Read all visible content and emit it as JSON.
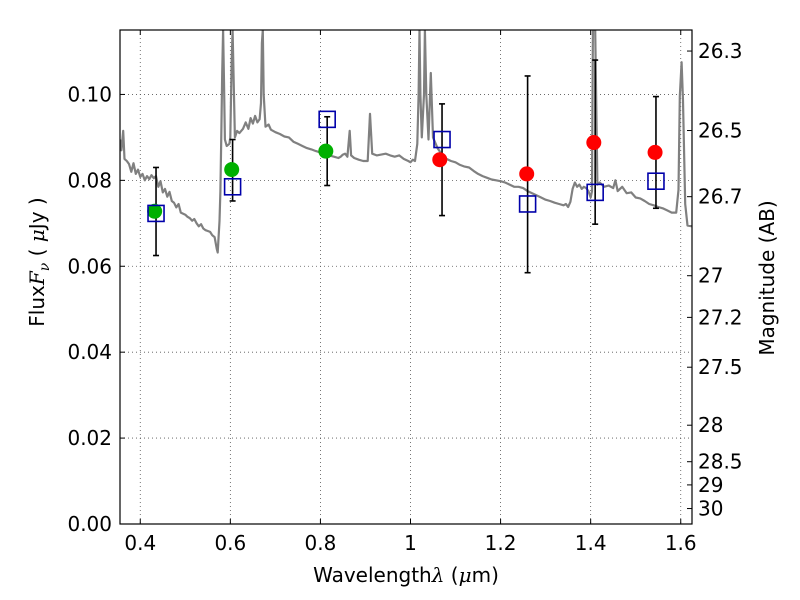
{
  "chart_data": {
    "type": "scatter",
    "xlabel_text": "Wavelength",
    "xlabel_symbol": "λ",
    "xlabel_unit_open": " (",
    "xlabel_unit_mu": "μ",
    "xlabel_unit_close": "m)",
    "ylabel_text": "Flux",
    "ylabel_symbol": "F",
    "ylabel_subscript": "ν",
    "ylabel_unit_open": " ( ",
    "ylabel_unit_mu": "μ",
    "ylabel_unit_close": "Jy )",
    "y2label": "Magnitude (AB)",
    "xlim": [
      0.355,
      1.625
    ],
    "ylim": [
      0.0,
      0.115
    ],
    "grid": true,
    "x_ticks": [
      {
        "value": 0.4,
        "label": "0.4"
      },
      {
        "value": 0.6,
        "label": "0.6"
      },
      {
        "value": 0.8,
        "label": "0.8"
      },
      {
        "value": 1.0,
        "label": "1"
      },
      {
        "value": 1.2,
        "label": "1.2"
      },
      {
        "value": 1.4,
        "label": "1.4"
      },
      {
        "value": 1.6,
        "label": "1.6"
      }
    ],
    "y_ticks": [
      {
        "value": 0.0,
        "label": "0.00"
      },
      {
        "value": 0.02,
        "label": "0.02"
      },
      {
        "value": 0.04,
        "label": "0.04"
      },
      {
        "value": 0.06,
        "label": "0.06"
      },
      {
        "value": 0.08,
        "label": "0.08"
      },
      {
        "value": 0.1,
        "label": "0.10"
      }
    ],
    "y2_ticks": [
      {
        "label": "26.3",
        "flux": 0.1101
      },
      {
        "label": "26.5",
        "flux": 0.0916
      },
      {
        "label": "26.7",
        "flux": 0.0762
      },
      {
        "label": "27",
        "flux": 0.0578
      },
      {
        "label": "27.2",
        "flux": 0.0481
      },
      {
        "label": "27.5",
        "flux": 0.0365
      },
      {
        "label": "28",
        "flux": 0.023
      },
      {
        "label": "28.5",
        "flux": 0.0145
      },
      {
        "label": "29",
        "flux": 0.0091
      },
      {
        "label": "30",
        "flux": 0.0036
      }
    ],
    "series": [
      {
        "kind": "model_spectrum",
        "color": "#808080",
        "points": [
          [
            0.355,
            0.0895
          ],
          [
            0.358,
            0.087
          ],
          [
            0.362,
            0.0915
          ],
          [
            0.365,
            0.085
          ],
          [
            0.37,
            0.0845
          ],
          [
            0.375,
            0.0838
          ],
          [
            0.38,
            0.082
          ],
          [
            0.385,
            0.084
          ],
          [
            0.39,
            0.0815
          ],
          [
            0.395,
            0.0825
          ],
          [
            0.4,
            0.0808
          ],
          [
            0.405,
            0.0815
          ],
          [
            0.41,
            0.08
          ],
          [
            0.415,
            0.081
          ],
          [
            0.42,
            0.0803
          ],
          [
            0.425,
            0.0812
          ],
          [
            0.43,
            0.0805
          ],
          [
            0.435,
            0.081
          ],
          [
            0.44,
            0.0785
          ],
          [
            0.445,
            0.0798
          ],
          [
            0.45,
            0.0772
          ],
          [
            0.455,
            0.078
          ],
          [
            0.46,
            0.0762
          ],
          [
            0.465,
            0.0773
          ],
          [
            0.47,
            0.0752
          ],
          [
            0.475,
            0.0748
          ],
          [
            0.48,
            0.0737
          ],
          [
            0.485,
            0.0745
          ],
          [
            0.49,
            0.0725
          ],
          [
            0.5,
            0.072
          ],
          [
            0.505,
            0.0715
          ],
          [
            0.51,
            0.0712
          ],
          [
            0.515,
            0.0706
          ],
          [
            0.52,
            0.071
          ],
          [
            0.525,
            0.07
          ],
          [
            0.53,
            0.0693
          ],
          [
            0.535,
            0.0698
          ],
          [
            0.54,
            0.0688
          ],
          [
            0.545,
            0.0684
          ],
          [
            0.55,
            0.0682
          ],
          [
            0.555,
            0.068
          ],
          [
            0.56,
            0.0672
          ],
          [
            0.565,
            0.0668
          ],
          [
            0.57,
            0.064
          ],
          [
            0.572,
            0.0632
          ],
          [
            0.576,
            0.0705
          ],
          [
            0.578,
            0.0775
          ],
          [
            0.58,
            0.0905
          ],
          [
            0.582,
            0.105
          ],
          [
            0.584,
            0.115
          ],
          [
            0.586,
            0.103
          ],
          [
            0.588,
            0.0895
          ],
          [
            0.592,
            0.088
          ],
          [
            0.598,
            0.0885
          ],
          [
            0.6,
            0.09
          ],
          [
            0.603,
            0.108
          ],
          [
            0.605,
            0.115
          ],
          [
            0.607,
            0.105
          ],
          [
            0.61,
            0.09
          ],
          [
            0.615,
            0.0915
          ],
          [
            0.62,
            0.091
          ],
          [
            0.628,
            0.092
          ],
          [
            0.634,
            0.0935
          ],
          [
            0.64,
            0.092
          ],
          [
            0.645,
            0.0945
          ],
          [
            0.65,
            0.0932
          ],
          [
            0.655,
            0.095
          ],
          [
            0.66,
            0.0935
          ],
          [
            0.665,
            0.0942
          ],
          [
            0.668,
            0.098
          ],
          [
            0.67,
            0.112
          ],
          [
            0.672,
            0.115
          ],
          [
            0.674,
            0.1
          ],
          [
            0.678,
            0.0925
          ],
          [
            0.685,
            0.093
          ],
          [
            0.69,
            0.0918
          ],
          [
            0.7,
            0.0912
          ],
          [
            0.71,
            0.0908
          ],
          [
            0.72,
            0.0902
          ],
          [
            0.73,
            0.09
          ],
          [
            0.74,
            0.089
          ],
          [
            0.75,
            0.0885
          ],
          [
            0.76,
            0.088
          ],
          [
            0.77,
            0.0875
          ],
          [
            0.78,
            0.0872
          ],
          [
            0.79,
            0.0868
          ],
          [
            0.8,
            0.0865
          ],
          [
            0.81,
            0.0862
          ],
          [
            0.82,
            0.0858
          ],
          [
            0.83,
            0.0855
          ],
          [
            0.84,
            0.0852
          ],
          [
            0.845,
            0.0855
          ],
          [
            0.85,
            0.086
          ],
          [
            0.855,
            0.0862
          ],
          [
            0.86,
            0.0855
          ],
          [
            0.865,
            0.0915
          ],
          [
            0.868,
            0.0858
          ],
          [
            0.875,
            0.0852
          ],
          [
            0.885,
            0.0848
          ],
          [
            0.895,
            0.0845
          ],
          [
            0.905,
            0.0845
          ],
          [
            0.91,
            0.0955
          ],
          [
            0.915,
            0.0862
          ],
          [
            0.925,
            0.0858
          ],
          [
            0.935,
            0.086
          ],
          [
            0.945,
            0.0862
          ],
          [
            0.955,
            0.0858
          ],
          [
            0.965,
            0.0855
          ],
          [
            0.975,
            0.0858
          ],
          [
            0.985,
            0.085
          ],
          [
            0.995,
            0.0845
          ],
          [
            1.0,
            0.0842
          ],
          [
            1.005,
            0.0848
          ],
          [
            1.01,
            0.0845
          ],
          [
            1.015,
            0.0885
          ],
          [
            1.018,
            0.1
          ],
          [
            1.02,
            0.115
          ],
          [
            1.022,
            0.1
          ],
          [
            1.025,
            0.09
          ],
          [
            1.03,
            0.1
          ],
          [
            1.032,
            0.115
          ],
          [
            1.035,
            0.1
          ],
          [
            1.04,
            0.0895
          ],
          [
            1.045,
            0.105
          ],
          [
            1.05,
            0.09
          ],
          [
            1.06,
            0.0875
          ],
          [
            1.07,
            0.086
          ],
          [
            1.08,
            0.085
          ],
          [
            1.09,
            0.0845
          ],
          [
            1.1,
            0.0842
          ],
          [
            1.11,
            0.0836
          ],
          [
            1.12,
            0.0832
          ],
          [
            1.13,
            0.083
          ],
          [
            1.14,
            0.0822
          ],
          [
            1.15,
            0.0815
          ],
          [
            1.16,
            0.081
          ],
          [
            1.17,
            0.0806
          ],
          [
            1.18,
            0.0802
          ],
          [
            1.19,
            0.08
          ],
          [
            1.2,
            0.0798
          ],
          [
            1.21,
            0.0795
          ],
          [
            1.22,
            0.079
          ],
          [
            1.23,
            0.0785
          ],
          [
            1.24,
            0.0785
          ],
          [
            1.25,
            0.0782
          ],
          [
            1.26,
            0.0775
          ],
          [
            1.27,
            0.077
          ],
          [
            1.28,
            0.0765
          ],
          [
            1.29,
            0.076
          ],
          [
            1.3,
            0.0755
          ],
          [
            1.31,
            0.0752
          ],
          [
            1.32,
            0.0748
          ],
          [
            1.33,
            0.0745
          ],
          [
            1.34,
            0.0742
          ],
          [
            1.345,
            0.0745
          ],
          [
            1.35,
            0.0738
          ],
          [
            1.355,
            0.075
          ],
          [
            1.36,
            0.078
          ],
          [
            1.365,
            0.0795
          ],
          [
            1.37,
            0.0785
          ],
          [
            1.375,
            0.079
          ],
          [
            1.38,
            0.078
          ],
          [
            1.385,
            0.0785
          ],
          [
            1.39,
            0.0782
          ],
          [
            1.395,
            0.0775
          ],
          [
            1.4,
            0.076
          ],
          [
            1.403,
            0.0775
          ],
          [
            1.405,
            0.115
          ],
          [
            1.41,
            0.115
          ],
          [
            1.415,
            0.079
          ],
          [
            1.42,
            0.0795
          ],
          [
            1.43,
            0.0785
          ],
          [
            1.44,
            0.0788
          ],
          [
            1.45,
            0.0782
          ],
          [
            1.455,
            0.08
          ],
          [
            1.46,
            0.0775
          ],
          [
            1.47,
            0.0785
          ],
          [
            1.48,
            0.077
          ],
          [
            1.49,
            0.0772
          ],
          [
            1.5,
            0.076
          ],
          [
            1.51,
            0.0758
          ],
          [
            1.52,
            0.0752
          ],
          [
            1.53,
            0.0745
          ],
          [
            1.54,
            0.0742
          ],
          [
            1.55,
            0.0738
          ],
          [
            1.56,
            0.0735
          ],
          [
            1.57,
            0.073
          ],
          [
            1.58,
            0.0725
          ],
          [
            1.59,
            0.0725
          ],
          [
            1.595,
            0.0778
          ],
          [
            1.598,
            0.0995
          ],
          [
            1.602,
            0.1075
          ],
          [
            1.605,
            0.0985
          ],
          [
            1.61,
            0.0745
          ],
          [
            1.615,
            0.0695
          ],
          [
            1.625,
            0.0693
          ]
        ]
      },
      {
        "kind": "observed_squares",
        "marker": "open-square",
        "color": "#0000aa",
        "points": [
          {
            "x": 0.435,
            "y": 0.0723,
            "ylow": 0.0625,
            "yhigh": 0.083
          },
          {
            "x": 0.605,
            "y": 0.0785,
            "ylow": 0.0752,
            "yhigh": 0.0895
          },
          {
            "x": 0.815,
            "y": 0.0942,
            "ylow": 0.0788,
            "yhigh": 0.0948
          },
          {
            "x": 1.07,
            "y": 0.0895,
            "ylow": 0.0718,
            "yhigh": 0.0978
          },
          {
            "x": 1.26,
            "y": 0.0745,
            "ylow": 0.0585,
            "yhigh": 0.1043
          },
          {
            "x": 1.41,
            "y": 0.0772,
            "ylow": 0.0698,
            "yhigh": 0.108
          },
          {
            "x": 1.545,
            "y": 0.0798,
            "ylow": 0.0735,
            "yhigh": 0.0995
          }
        ]
      },
      {
        "kind": "green_circles",
        "marker": "filled-circle",
        "color": "#00b000",
        "points": [
          {
            "x": 0.432,
            "y": 0.0728
          },
          {
            "x": 0.603,
            "y": 0.0825
          },
          {
            "x": 0.812,
            "y": 0.0868
          }
        ]
      },
      {
        "kind": "red_circles",
        "marker": "filled-circle",
        "color": "#ff0000",
        "points": [
          {
            "x": 1.065,
            "y": 0.0848
          },
          {
            "x": 1.258,
            "y": 0.0815
          },
          {
            "x": 1.407,
            "y": 0.0888
          },
          {
            "x": 1.543,
            "y": 0.0865
          }
        ]
      }
    ]
  }
}
